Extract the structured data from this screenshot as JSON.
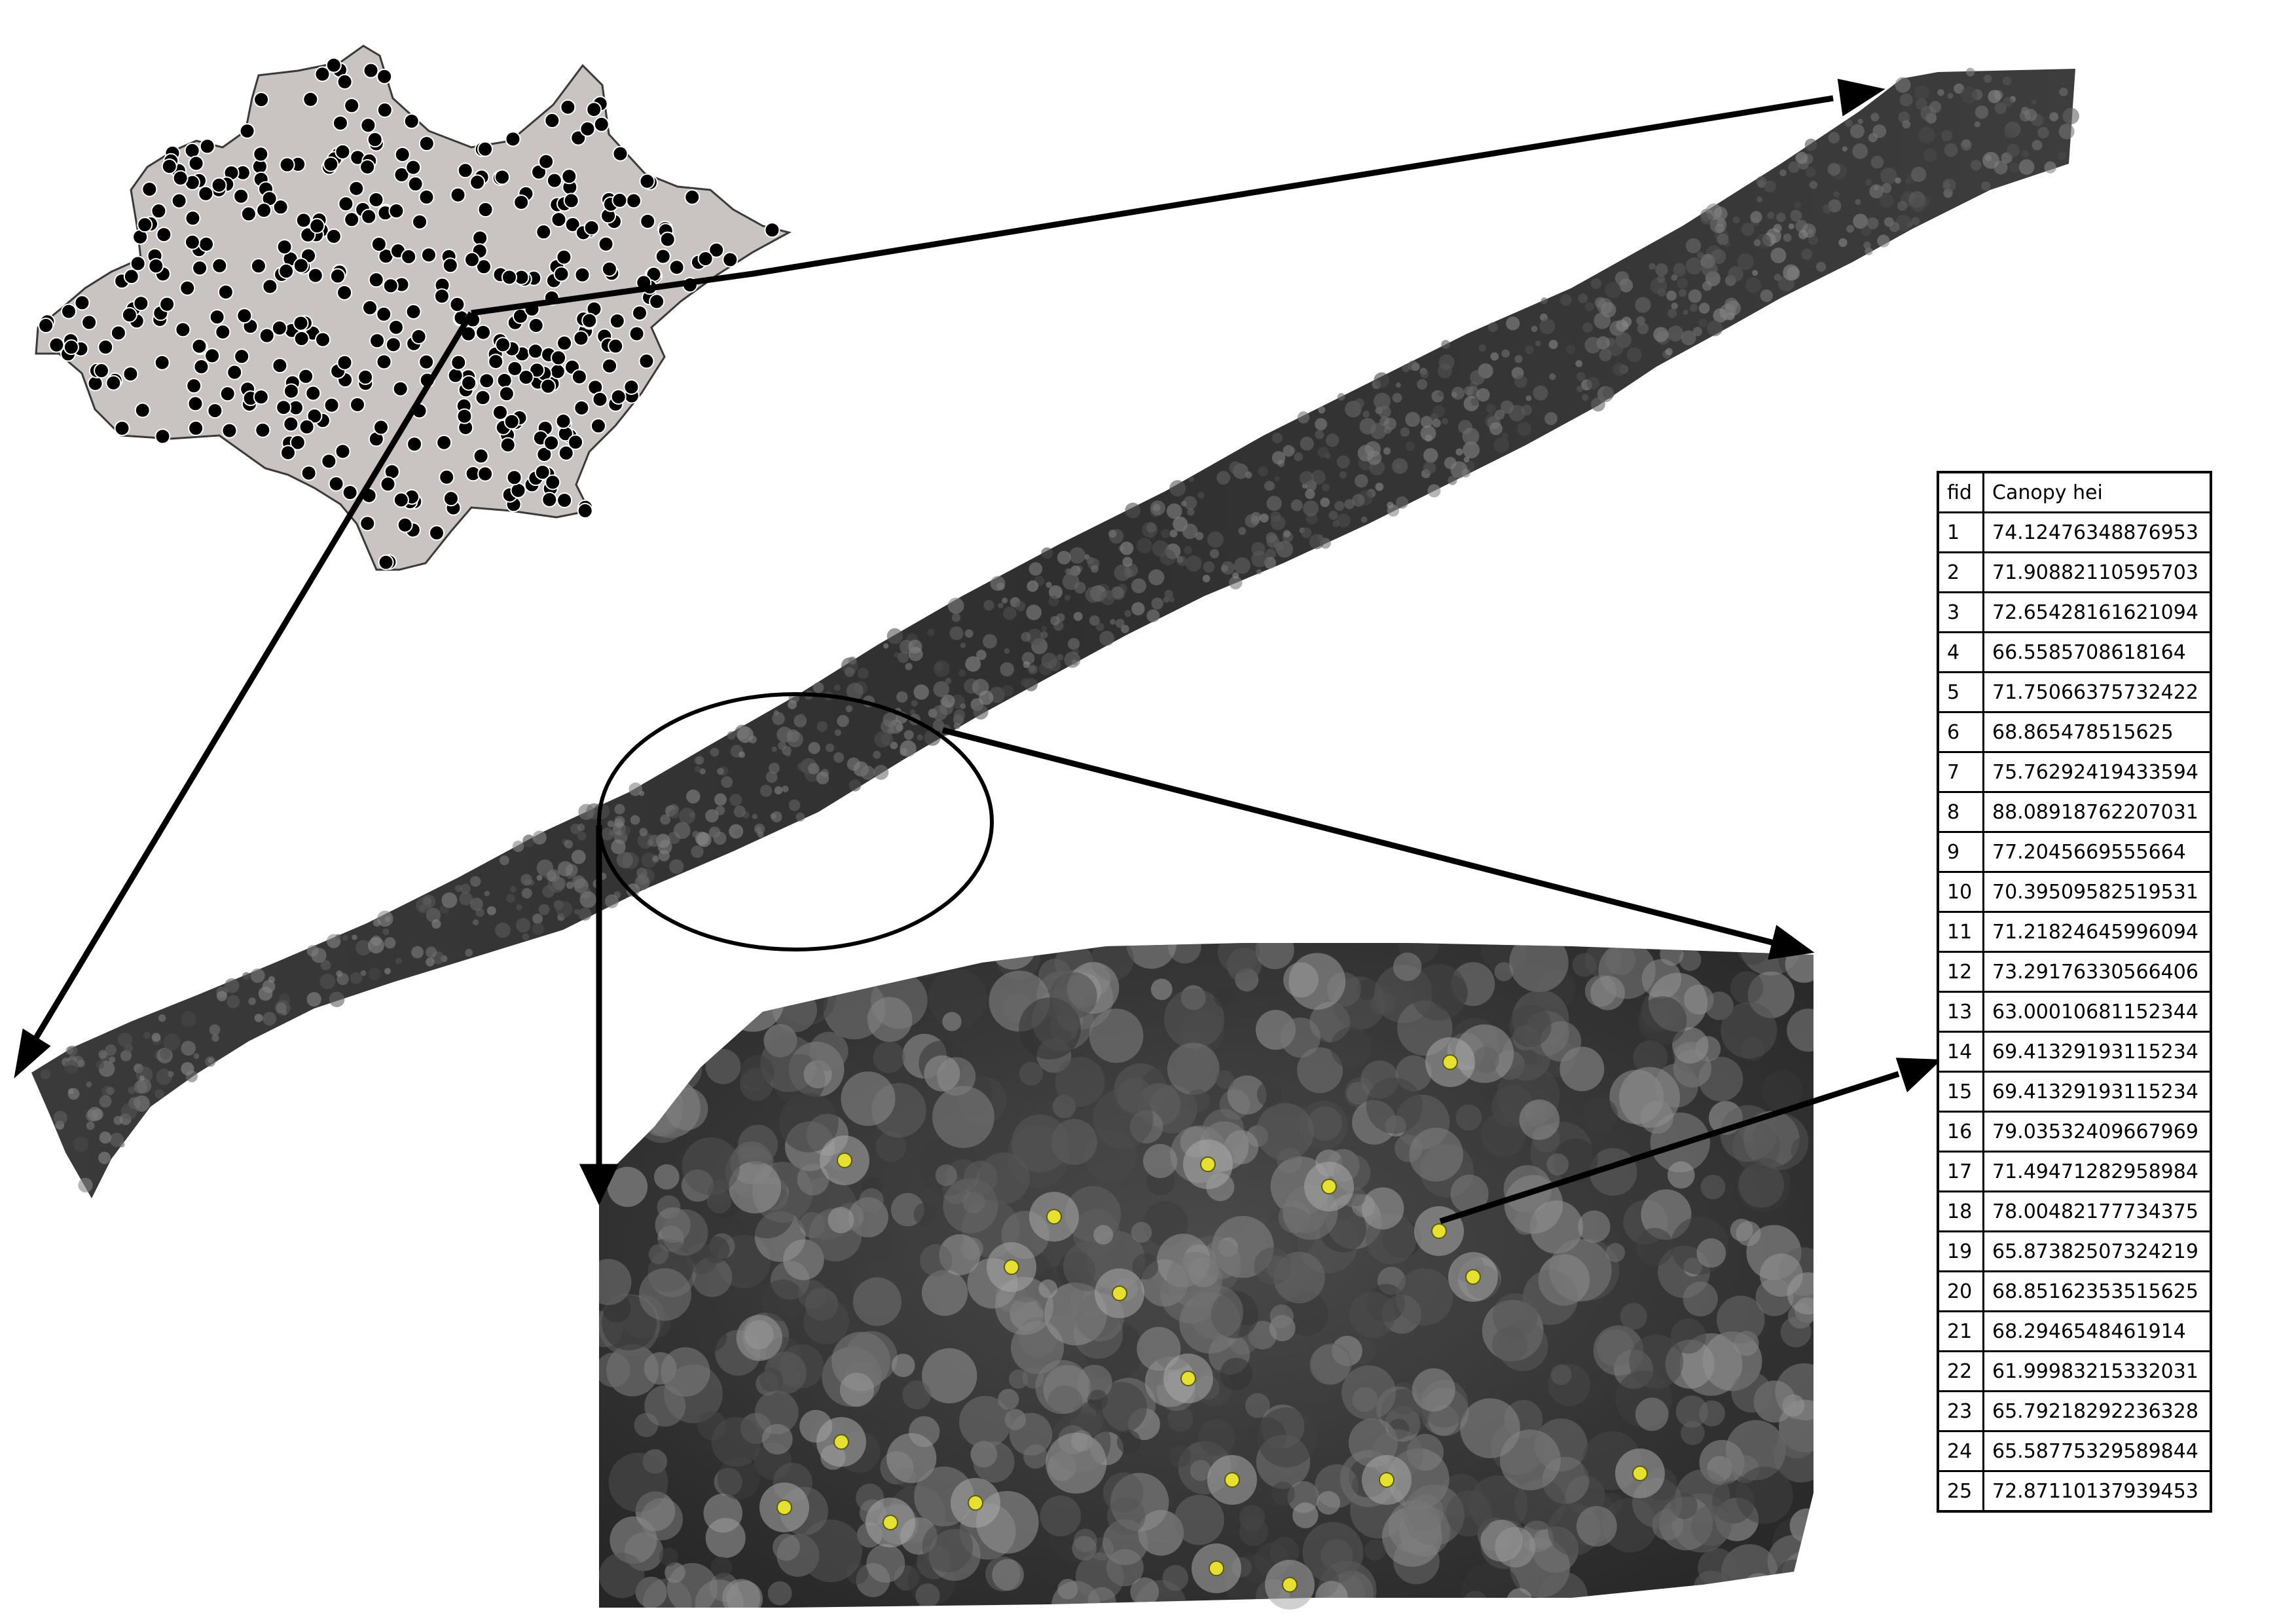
{
  "figure": {
    "colors": {
      "region_fill": "#c9c3c1",
      "point_fill": "#000000",
      "sample_dot": "#e6e032",
      "arrow": "#000000",
      "background": "#ffffff"
    }
  },
  "attribute_table": {
    "headers": [
      "fid",
      "Canopy hei"
    ],
    "rows": [
      {
        "fid": "1",
        "value": "74.12476348876953"
      },
      {
        "fid": "2",
        "value": "71.90882110595703"
      },
      {
        "fid": "3",
        "value": "72.65428161621094"
      },
      {
        "fid": "4",
        "value": "66.5585708618164"
      },
      {
        "fid": "5",
        "value": "71.75066375732422"
      },
      {
        "fid": "6",
        "value": "68.865478515625"
      },
      {
        "fid": "7",
        "value": "75.76292419433594"
      },
      {
        "fid": "8",
        "value": "88.08918762207031"
      },
      {
        "fid": "9",
        "value": "77.2045669555664"
      },
      {
        "fid": "10",
        "value": "70.39509582519531"
      },
      {
        "fid": "11",
        "value": "71.21824645996094"
      },
      {
        "fid": "12",
        "value": "73.29176330566406"
      },
      {
        "fid": "13",
        "value": "63.00010681152344"
      },
      {
        "fid": "14",
        "value": "69.41329193115234"
      },
      {
        "fid": "15",
        "value": "69.41329193115234"
      },
      {
        "fid": "16",
        "value": "79.03532409667969"
      },
      {
        "fid": "17",
        "value": "71.49471282958984"
      },
      {
        "fid": "18",
        "value": "78.00482177734375"
      },
      {
        "fid": "19",
        "value": "65.87382507324219"
      },
      {
        "fid": "20",
        "value": "68.85162353515625"
      },
      {
        "fid": "21",
        "value": "68.2946548461914"
      },
      {
        "fid": "22",
        "value": "61.99983215332031"
      },
      {
        "fid": "23",
        "value": "65.79218292236328"
      },
      {
        "fid": "24",
        "value": "65.58775329589844"
      },
      {
        "fid": "25",
        "value": "72.87110137939453"
      }
    ]
  }
}
